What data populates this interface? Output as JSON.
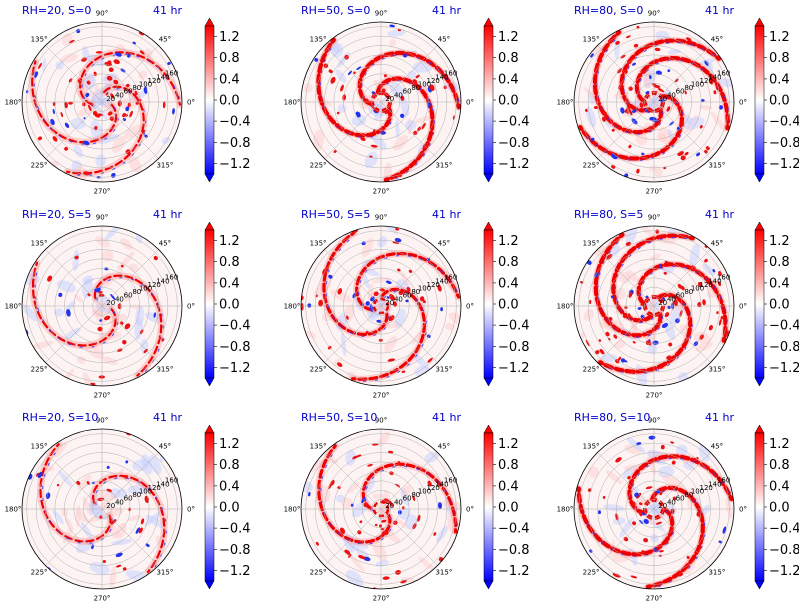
{
  "figure": {
    "colormap": "bwr",
    "colors": {
      "negative": "#0000ff",
      "zero": "#ffffff",
      "positive": "#ff0000",
      "title": "#0000cc"
    }
  },
  "chart_data": [
    {
      "type": "heatmap",
      "projection": "polar",
      "title_left": "RH=20, S=0",
      "title_right": "41 hr",
      "angle_ticks": [
        "0°",
        "45°",
        "90°",
        "135°",
        "180°",
        "225°",
        "270°",
        "315°"
      ],
      "radial_ticks": [
        "20",
        "40",
        "60",
        "80",
        "100",
        "120",
        "140",
        "160"
      ],
      "colorbar": {
        "ticks": [
          "1.2",
          "0.8",
          "0.4",
          "0.0",
          "−0.4",
          "−0.8",
          "−1.2"
        ],
        "tick_values": [
          1.2,
          0.8,
          0.4,
          0.0,
          -0.4,
          -0.8,
          -1.2
        ],
        "range": [
          -1.4,
          1.4
        ],
        "extend": "both"
      },
      "structure": {
        "bands": 3,
        "scatter": "high",
        "core": "weak"
      }
    },
    {
      "type": "heatmap",
      "projection": "polar",
      "title_left": "RH=50, S=0",
      "title_right": "41 hr",
      "angle_ticks": [
        "0°",
        "45°",
        "90°",
        "135°",
        "180°",
        "225°",
        "270°",
        "315°"
      ],
      "radial_ticks": [
        "20",
        "40",
        "60",
        "80",
        "100",
        "120",
        "140",
        "160"
      ],
      "colorbar": {
        "ticks": [
          "1.2",
          "0.8",
          "0.4",
          "0.0",
          "−0.4",
          "−0.8",
          "−1.2"
        ],
        "tick_values": [
          1.2,
          0.8,
          0.4,
          0.0,
          -0.4,
          -0.8,
          -1.2
        ],
        "range": [
          -1.4,
          1.4
        ],
        "extend": "both"
      },
      "structure": {
        "bands": 3,
        "scatter": "medium",
        "core": "strong"
      }
    },
    {
      "type": "heatmap",
      "projection": "polar",
      "title_left": "RH=80, S=0",
      "title_right": "41 hr",
      "angle_ticks": [
        "0°",
        "45°",
        "90°",
        "135°",
        "180°",
        "225°",
        "270°",
        "315°"
      ],
      "radial_ticks": [
        "20",
        "40",
        "60",
        "80",
        "100",
        "120",
        "140",
        "160"
      ],
      "colorbar": {
        "ticks": [
          "1.2",
          "0.8",
          "0.4",
          "0.0",
          "−0.4",
          "−0.8",
          "−1.2"
        ],
        "tick_values": [
          1.2,
          0.8,
          0.4,
          0.0,
          -0.4,
          -0.8,
          -1.2
        ],
        "range": [
          -1.4,
          1.4
        ],
        "extend": "both"
      },
      "structure": {
        "bands": 4,
        "scatter": "high",
        "core": "strong"
      }
    },
    {
      "type": "heatmap",
      "projection": "polar",
      "title_left": "RH=20, S=5",
      "title_right": "41 hr",
      "angle_ticks": [
        "0°",
        "45°",
        "90°",
        "135°",
        "180°",
        "225°",
        "270°",
        "315°"
      ],
      "radial_ticks": [
        "20",
        "40",
        "60",
        "80",
        "100",
        "120",
        "140",
        "160"
      ],
      "colorbar": {
        "ticks": [
          "1.2",
          "0.8",
          "0.4",
          "0.0",
          "−0.4",
          "−0.8",
          "−1.2"
        ],
        "tick_values": [
          1.2,
          0.8,
          0.4,
          0.0,
          -0.4,
          -0.8,
          -1.2
        ],
        "range": [
          -1.4,
          1.4
        ],
        "extend": "both"
      },
      "structure": {
        "bands": 2,
        "scatter": "low",
        "core": "weak"
      }
    },
    {
      "type": "heatmap",
      "projection": "polar",
      "title_left": "RH=50, S=5",
      "title_right": "41 hr",
      "angle_ticks": [
        "0°",
        "45°",
        "90°",
        "135°",
        "180°",
        "225°",
        "270°",
        "315°"
      ],
      "radial_ticks": [
        "20",
        "40",
        "60",
        "80",
        "100",
        "120",
        "140",
        "160"
      ],
      "colorbar": {
        "ticks": [
          "1.2",
          "0.8",
          "0.4",
          "0.0",
          "−0.4",
          "−0.8",
          "−1.2"
        ],
        "tick_values": [
          1.2,
          0.8,
          0.4,
          0.0,
          -0.4,
          -0.8,
          -1.2
        ],
        "range": [
          -1.4,
          1.4
        ],
        "extend": "both"
      },
      "structure": {
        "bands": 3,
        "scatter": "medium",
        "core": "medium"
      }
    },
    {
      "type": "heatmap",
      "projection": "polar",
      "title_left": "RH=80, S=5",
      "title_right": "41 hr",
      "angle_ticks": [
        "0°",
        "45°",
        "90°",
        "135°",
        "180°",
        "225°",
        "270°",
        "315°"
      ],
      "radial_ticks": [
        "20",
        "40",
        "60",
        "80",
        "100",
        "120",
        "140",
        "160"
      ],
      "colorbar": {
        "ticks": [
          "1.2",
          "0.8",
          "0.4",
          "0.0",
          "−0.4",
          "−0.8",
          "−1.2"
        ],
        "tick_values": [
          1.2,
          0.8,
          0.4,
          0.0,
          -0.4,
          -0.8,
          -1.2
        ],
        "range": [
          -1.4,
          1.4
        ],
        "extend": "both"
      },
      "structure": {
        "bands": 4,
        "scatter": "high",
        "core": "strong"
      }
    },
    {
      "type": "heatmap",
      "projection": "polar",
      "title_left": "RH=20, S=10",
      "title_right": "41 hr",
      "angle_ticks": [
        "0°",
        "45°",
        "90°",
        "135°",
        "180°",
        "225°",
        "270°",
        "315°"
      ],
      "radial_ticks": [
        "20",
        "40",
        "60",
        "80",
        "100",
        "120",
        "140",
        "160"
      ],
      "colorbar": {
        "ticks": [
          "1.2",
          "0.8",
          "0.4",
          "0.0",
          "−0.4",
          "−0.8",
          "−1.2"
        ],
        "tick_values": [
          1.2,
          0.8,
          0.4,
          0.0,
          -0.4,
          -0.8,
          -1.2
        ],
        "range": [
          -1.4,
          1.4
        ],
        "extend": "both"
      },
      "structure": {
        "bands": 2,
        "scatter": "low",
        "core": "weak"
      }
    },
    {
      "type": "heatmap",
      "projection": "polar",
      "title_left": "RH=50, S=10",
      "title_right": "41 hr",
      "angle_ticks": [
        "0°",
        "45°",
        "90°",
        "135°",
        "180°",
        "225°",
        "270°",
        "315°"
      ],
      "radial_ticks": [
        "20",
        "40",
        "60",
        "80",
        "100",
        "120",
        "140",
        "160"
      ],
      "colorbar": {
        "ticks": [
          "1.2",
          "0.8",
          "0.4",
          "0.0",
          "−0.4",
          "−0.8",
          "−1.2"
        ],
        "tick_values": [
          1.2,
          0.8,
          0.4,
          0.0,
          -0.4,
          -0.8,
          -1.2
        ],
        "range": [
          -1.4,
          1.4
        ],
        "extend": "both"
      },
      "structure": {
        "bands": 2,
        "scatter": "medium",
        "core": "medium"
      }
    },
    {
      "type": "heatmap",
      "projection": "polar",
      "title_left": "RH=80, S=10",
      "title_right": "41 hr",
      "angle_ticks": [
        "0°",
        "45°",
        "90°",
        "135°",
        "180°",
        "225°",
        "270°",
        "315°"
      ],
      "radial_ticks": [
        "20",
        "40",
        "60",
        "80",
        "100",
        "120",
        "140",
        "160"
      ],
      "colorbar": {
        "ticks": [
          "1.2",
          "0.8",
          "0.4",
          "0.0",
          "−0.4",
          "−0.8",
          "−1.2"
        ],
        "tick_values": [
          1.2,
          0.8,
          0.4,
          0.0,
          -0.4,
          -0.8,
          -1.2
        ],
        "range": [
          -1.4,
          1.4
        ],
        "extend": "both"
      },
      "structure": {
        "bands": 3,
        "scatter": "medium",
        "core": "strong"
      }
    }
  ]
}
